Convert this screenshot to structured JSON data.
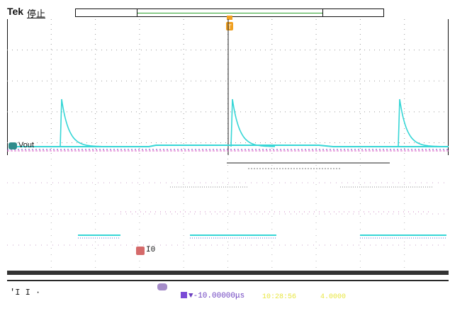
{
  "header": {
    "brand": "Tek",
    "status": "停止"
  },
  "channel": {
    "label": "Vout",
    "color": "#2f8b8b"
  },
  "trace_color": "#36d6d6",
  "trigger_color": "#f0a020",
  "cursor": {
    "label": "I0"
  },
  "bottom": {
    "left_readout": "'I I  ·",
    "delay_readout": "▼-10.00000μs",
    "faint_1": "10:28:56",
    "faint_2": "4.0000"
  },
  "icons": {
    "trigger": "trigger-marker-icon",
    "channel": "channel-marker-icon",
    "cursor": "cursor-marker-icon",
    "timebase": "timebase-icon"
  }
}
